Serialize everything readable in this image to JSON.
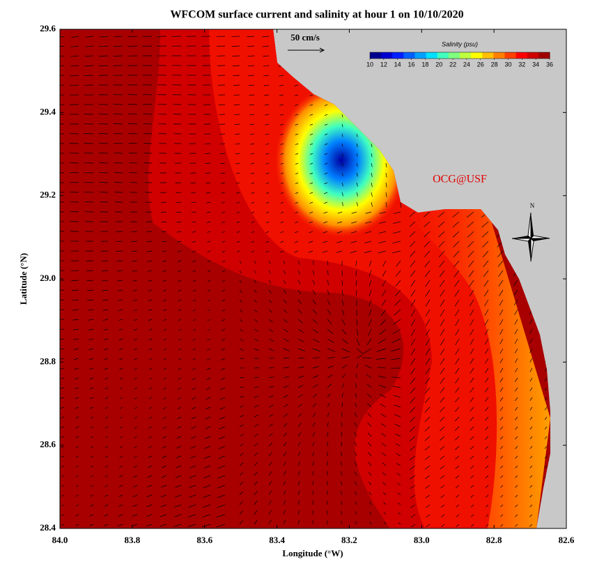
{
  "map_data": {
    "title": "WFCOM surface current and salinity at hour 1 on 10/10/2020",
    "x_label": "Longitude (°W)",
    "y_label": "Latitude (°N)",
    "xlim": [
      84.0,
      82.6
    ],
    "xticks": [
      {
        "value": 84,
        "label": "84.0"
      },
      83.8,
      83.6,
      83.4,
      83.2,
      {
        "value": 83,
        "label": "83.0"
      },
      82.8,
      82.6
    ],
    "ylim": [
      28.4,
      29.6
    ],
    "yticks": [
      28.4,
      28.6,
      28.8,
      {
        "value": 29,
        "label": "29.0"
      },
      29.2,
      29.4,
      29.6
    ],
    "colorbar": {
      "title": "Salinity (psu)",
      "lim": [
        10,
        36
      ],
      "ticks": [
        10,
        12,
        14,
        16,
        18,
        20,
        22,
        24,
        26,
        28,
        30,
        32,
        34,
        36
      ],
      "colors": [
        "#00008f",
        "#0000d0",
        "#0020ff",
        "#0060ff",
        "#00a0ff",
        "#00e0ff",
        "#40ffbf",
        "#80ff80",
        "#c0ff40",
        "#ffff00",
        "#ffc000",
        "#ff8000",
        "#ff4000",
        "#ff0000",
        "#d00000",
        "#a00000"
      ]
    },
    "scale_label": "50 cm/s",
    "credit": "OCG@USF",
    "north_label": "N"
  }
}
